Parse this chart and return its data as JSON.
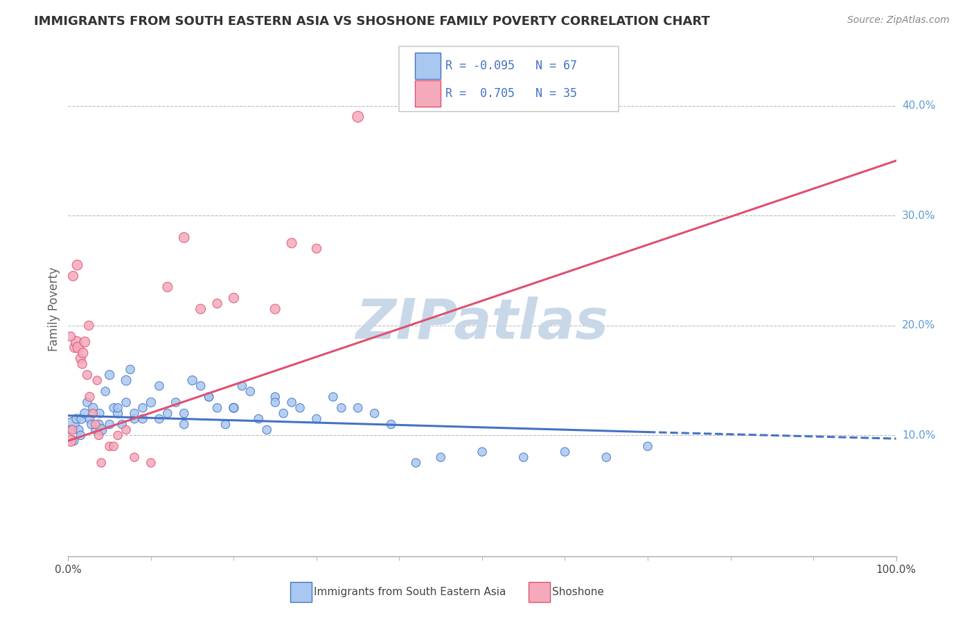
{
  "title": "IMMIGRANTS FROM SOUTH EASTERN ASIA VS SHOSHONE FAMILY POVERTY CORRELATION CHART",
  "source_text": "Source: ZipAtlas.com",
  "ylabel": "Family Poverty",
  "xlim": [
    0,
    100
  ],
  "ylim": [
    -1,
    44
  ],
  "y_tick_values": [
    10,
    20,
    30,
    40
  ],
  "y_tick_labels": [
    "10.0%",
    "20.0%",
    "30.0%",
    "40.0%"
  ],
  "x_tick_label_left": "0.0%",
  "x_tick_label_right": "100.0%",
  "series1_label": "Immigrants from South Eastern Asia",
  "series1_face_color": "#A8C8F0",
  "series1_edge_color": "#4472C4",
  "series1_line_color": "#4472C4",
  "series1_R": "-0.095",
  "series1_N": "67",
  "series2_label": "Shoshone",
  "series2_face_color": "#F4AABB",
  "series2_edge_color": "#E05070",
  "series2_line_color": "#E05070",
  "series2_R": "0.705",
  "series2_N": "35",
  "watermark": "ZIPatlas",
  "watermark_color": "#C8D8E8",
  "background_color": "#FFFFFF",
  "grid_color": "#BBBBBB",
  "title_color": "#333333",
  "legend_text_color": "#4472C4",
  "series1_x": [
    0.5,
    1.0,
    1.3,
    1.6,
    2.0,
    2.3,
    2.6,
    3.0,
    3.3,
    3.7,
    4.0,
    4.5,
    5.0,
    5.5,
    6.0,
    6.5,
    7.0,
    7.5,
    8.0,
    9.0,
    10.0,
    11.0,
    12.0,
    13.0,
    14.0,
    15.0,
    16.0,
    17.0,
    18.0,
    19.0,
    20.0,
    21.0,
    22.0,
    23.0,
    24.0,
    25.0,
    26.0,
    27.0,
    28.0,
    30.0,
    32.0,
    33.0,
    35.0,
    37.0,
    39.0,
    42.0,
    45.0,
    50.0,
    55.0,
    60.0,
    65.0,
    70.0,
    0.3,
    0.7,
    1.5,
    2.8,
    3.8,
    5.0,
    6.0,
    7.0,
    8.0,
    9.0,
    11.0,
    14.0,
    17.0,
    20.0,
    25.0
  ],
  "series1_y": [
    11.0,
    11.5,
    10.5,
    11.5,
    12.0,
    13.0,
    11.5,
    12.5,
    10.5,
    11.0,
    10.5,
    14.0,
    15.5,
    12.5,
    12.0,
    11.0,
    15.0,
    16.0,
    11.5,
    12.5,
    13.0,
    14.5,
    12.0,
    13.0,
    12.0,
    15.0,
    14.5,
    13.5,
    12.5,
    11.0,
    12.5,
    14.5,
    14.0,
    11.5,
    10.5,
    13.5,
    12.0,
    13.0,
    12.5,
    11.5,
    13.5,
    12.5,
    12.5,
    12.0,
    11.0,
    7.5,
    8.0,
    8.5,
    8.0,
    8.5,
    8.0,
    9.0,
    10.5,
    9.5,
    10.0,
    11.0,
    12.0,
    11.0,
    12.5,
    13.0,
    12.0,
    11.5,
    11.5,
    11.0,
    13.5,
    12.5,
    13.0
  ],
  "series1_sizes": [
    200,
    90,
    80,
    90,
    90,
    80,
    80,
    90,
    80,
    90,
    120,
    80,
    90,
    80,
    90,
    80,
    100,
    80,
    80,
    80,
    90,
    80,
    80,
    80,
    80,
    90,
    80,
    80,
    80,
    80,
    90,
    80,
    80,
    80,
    80,
    80,
    80,
    80,
    80,
    80,
    80,
    80,
    80,
    80,
    80,
    80,
    80,
    80,
    80,
    80,
    80,
    80,
    80,
    80,
    80,
    80,
    80,
    80,
    80,
    80,
    80,
    80,
    80,
    80,
    80,
    80,
    80
  ],
  "series2_x": [
    0.3,
    0.5,
    0.8,
    1.0,
    1.2,
    1.5,
    1.8,
    2.0,
    2.3,
    2.6,
    3.0,
    3.3,
    3.7,
    4.0,
    5.0,
    6.0,
    7.0,
    8.0,
    10.0,
    12.0,
    14.0,
    16.0,
    18.0,
    20.0,
    25.0,
    30.0,
    35.0,
    0.3,
    0.6,
    1.1,
    1.7,
    2.5,
    3.5,
    5.5,
    27.0
  ],
  "series2_y": [
    9.5,
    10.5,
    18.0,
    18.5,
    18.0,
    17.0,
    17.5,
    18.5,
    15.5,
    13.5,
    12.0,
    11.0,
    10.0,
    7.5,
    9.0,
    10.0,
    10.5,
    8.0,
    7.5,
    23.5,
    28.0,
    21.5,
    22.0,
    22.5,
    21.5,
    27.0,
    39.0,
    19.0,
    24.5,
    25.5,
    16.5,
    20.0,
    15.0,
    9.0,
    27.5
  ],
  "series2_sizes": [
    130,
    90,
    110,
    130,
    120,
    100,
    100,
    110,
    90,
    90,
    80,
    80,
    80,
    80,
    80,
    80,
    80,
    80,
    80,
    100,
    110,
    100,
    90,
    100,
    100,
    90,
    130,
    90,
    100,
    110,
    90,
    90,
    80,
    80,
    100
  ],
  "trend1_x0": 0,
  "trend1_y0": 11.8,
  "trend1_x1": 70,
  "trend1_y1": 10.3,
  "trend1_x2": 100,
  "trend1_y2": 9.7,
  "trend2_x0": 0,
  "trend2_y0": 9.5,
  "trend2_x1": 100,
  "trend2_y1": 35.0
}
